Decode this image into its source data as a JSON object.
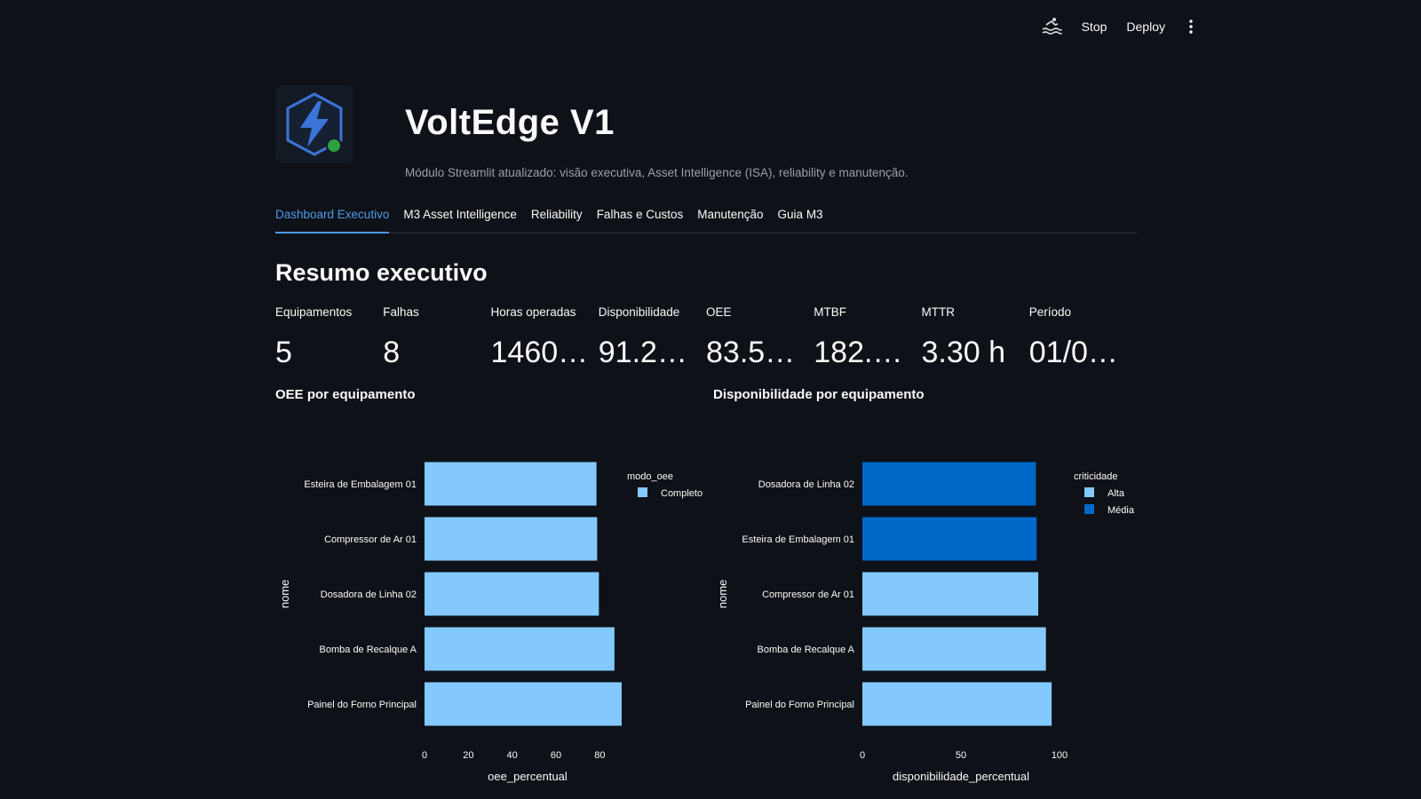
{
  "toolbar": {
    "stop_label": "Stop",
    "deploy_label": "Deploy"
  },
  "header": {
    "title": "VoltEdge V1",
    "subtitle": "Módulo Streamlit atualizado: visão executiva, Asset Intelligence (ISA), reliability e manutenção."
  },
  "tabs": [
    {
      "label": "Dashboard Executivo"
    },
    {
      "label": "M3 Asset Intelligence"
    },
    {
      "label": "Reliability"
    },
    {
      "label": "Falhas e Custos"
    },
    {
      "label": "Manutenção"
    },
    {
      "label": "Guia M3"
    }
  ],
  "section_title": "Resumo executivo",
  "metrics": [
    {
      "label": "Equipamentos",
      "value": "5"
    },
    {
      "label": "Falhas",
      "value": "8"
    },
    {
      "label": "Horas operadas",
      "value": "1460…"
    },
    {
      "label": "Disponibilidade",
      "value": "91.2…"
    },
    {
      "label": "OEE",
      "value": "83.5…"
    },
    {
      "label": "MTBF",
      "value": "182.…"
    },
    {
      "label": "MTTR",
      "value": "3.30 h"
    },
    {
      "label": "Período",
      "value": "01/0…"
    }
  ],
  "colors": {
    "light_blue": "#83c9ff",
    "dark_blue": "#0068c9",
    "accent": "#4c9be8"
  },
  "chart_data": [
    {
      "type": "bar",
      "orientation": "horizontal",
      "title": "OEE por equipamento",
      "xlabel": "oee_percentual",
      "ylabel": "nome",
      "xlim": [
        0,
        90
      ],
      "xticks": [
        0,
        20,
        40,
        60,
        80
      ],
      "categories": [
        "Esteira de Embalagem 01",
        "Compressor de Ar 01",
        "Dosadora de Linha 02",
        "Bomba de Recalque A",
        "Painel do Forno Principal"
      ],
      "values": [
        78.5,
        78.8,
        79.6,
        86.7,
        90.0
      ],
      "groups": [
        "Completo",
        "Completo",
        "Completo",
        "Completo",
        "Completo"
      ],
      "legend": {
        "title": "modo_oee",
        "entries": [
          {
            "label": "Completo",
            "color": "#83c9ff"
          }
        ],
        "position": "top-right"
      }
    },
    {
      "type": "bar",
      "orientation": "horizontal",
      "title": "Disponibilidade por equipamento",
      "xlabel": "disponibilidade_percentual",
      "ylabel": "nome",
      "xlim": [
        0,
        100
      ],
      "xticks": [
        0,
        50,
        100
      ],
      "categories": [
        "Dosadora de Linha 02",
        "Esteira de Embalagem 01",
        "Compressor de Ar 01",
        "Bomba de Recalque A",
        "Painel do Forno Principal"
      ],
      "values": [
        88.0,
        88.4,
        89.2,
        93.1,
        96.0
      ],
      "groups": [
        "Média",
        "Média",
        "Alta",
        "Alta",
        "Alta"
      ],
      "legend": {
        "title": "criticidade",
        "entries": [
          {
            "label": "Alta",
            "color": "#83c9ff"
          },
          {
            "label": "Média",
            "color": "#0068c9"
          }
        ],
        "position": "top-right"
      }
    }
  ]
}
